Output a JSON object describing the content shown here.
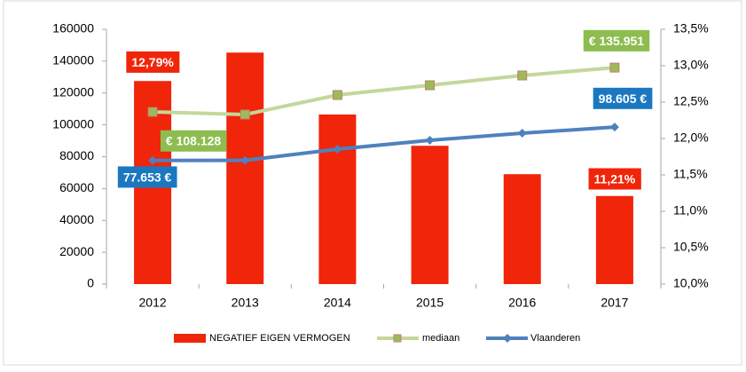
{
  "chart_data": {
    "type": "bar-line",
    "categories": [
      "2012",
      "2013",
      "2014",
      "2015",
      "2016",
      "2017"
    ],
    "series": [
      {
        "name": "NEGATIEF EIGEN VERMOGEN",
        "type": "bar",
        "axis": "y2",
        "color": "#f0250a",
        "values": [
          12.79,
          13.18,
          12.33,
          11.9,
          11.51,
          11.21
        ],
        "value_labels": [
          "12,79%",
          null,
          null,
          null,
          null,
          "11,21%"
        ]
      },
      {
        "name": "mediaan",
        "type": "line",
        "color": "#c4d79b",
        "marker_color": "#9bbb59",
        "values": [
          108128,
          106500,
          118750,
          124880,
          131010,
          135951
        ],
        "value_labels": [
          "€ 108.128",
          null,
          null,
          null,
          null,
          "€ 135.951"
        ]
      },
      {
        "name": "Vlaanderen",
        "type": "line",
        "color": "#4f81bd",
        "marker_color": "#4f81bd",
        "values": [
          77653,
          77700,
          84740,
          90300,
          94770,
          98605
        ],
        "value_labels": [
          "77.653 €",
          null,
          null,
          null,
          null,
          "98.605 €"
        ]
      }
    ],
    "ylim": [
      0,
      160000
    ],
    "yticks": [
      0,
      20000,
      40000,
      60000,
      80000,
      100000,
      120000,
      140000,
      160000
    ],
    "y2lim": [
      10,
      13.5
    ],
    "y2ticks": [
      {
        "value": 10,
        "label": "10,0%"
      },
      {
        "value": 10.5,
        "label": "10,5%"
      },
      {
        "value": 11,
        "label": "11,0%"
      },
      {
        "value": 11.5,
        "label": "11,5%"
      },
      {
        "value": 12,
        "label": "12,0%"
      },
      {
        "value": 12.5,
        "label": "12,5%"
      },
      {
        "value": 13,
        "label": "13,0%"
      },
      {
        "value": 13.5,
        "label": "13,5%"
      }
    ],
    "legend": "bottom"
  }
}
